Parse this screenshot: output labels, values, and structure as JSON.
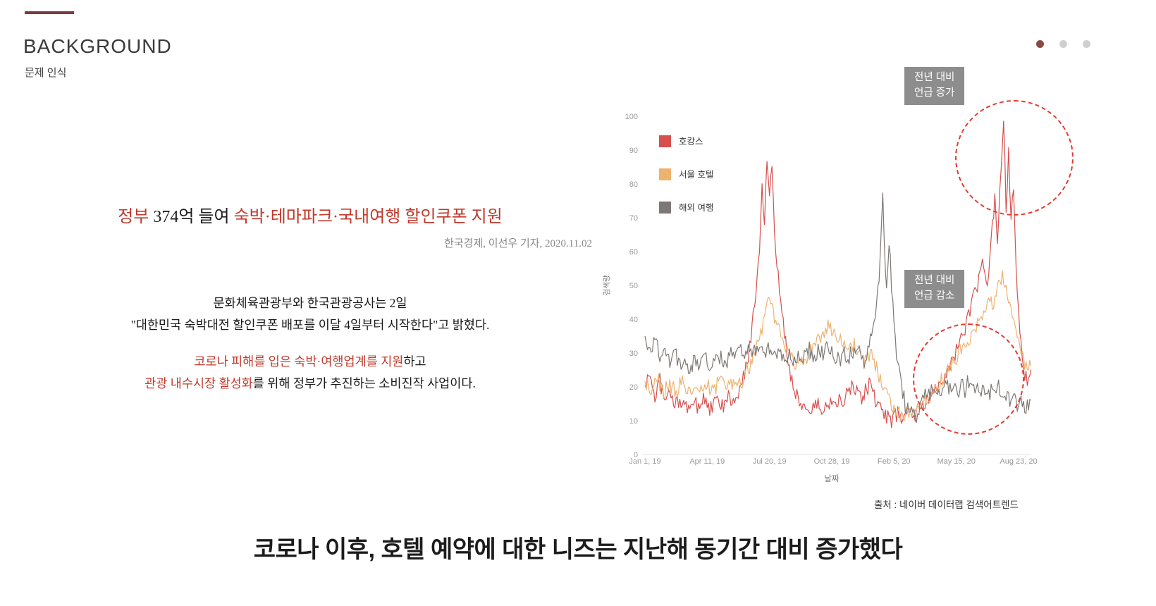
{
  "slide": {
    "title": "BACKGROUND",
    "subtitle": "문제 인식",
    "bottom_message": "코로나 이후, 호텔 예약에 대한 니즈는 지난해 동기간 대비 증가했다",
    "pagination": {
      "total": 3,
      "active": 0
    },
    "colors": {
      "accent": "#7d3b3b",
      "emphasis_red": "#c0392b",
      "active_dot": "#8a4a42",
      "inactive_dot": "#cfcfcf",
      "annotation_gray": "#8d8d8d",
      "highlight_dash_red": "#e23b32"
    }
  },
  "article": {
    "headline": [
      {
        "text": "정부",
        "em": true
      },
      {
        "text": " 374억 들여 ",
        "em": false
      },
      {
        "text": "숙박·테마파크·국내여행 할인쿠폰 지원",
        "em": true
      }
    ],
    "byline": "한국경제, 이선우 기자, 2020.11.02",
    "para1": [
      "문화체육관광부와 한국관광공사는 2일",
      "\"대한민국 숙박대전 할인쿠폰 배포를 이달 4일부터 시작한다\"고 밝혔다."
    ],
    "para2": [
      [
        {
          "text": "코로나 피해를 입은 숙박·여행업계를 지원",
          "em": true
        },
        {
          "text": "하고",
          "em": false
        }
      ],
      [
        {
          "text": "관광 내수시장 활성화",
          "em": true
        },
        {
          "text": "를 위해 정부가 추진하는 소비진작 사업이다.",
          "em": false
        }
      ]
    ]
  },
  "chart": {
    "source": "출처 : 네이버 데이터랩 검색어트렌드",
    "annotations": {
      "increase": [
        "전년 대비",
        "언급 증가"
      ],
      "decrease": [
        "전년 대비",
        "언급 감소"
      ]
    }
  },
  "chart_data": {
    "type": "line",
    "title": "",
    "xlabel": "날짜",
    "ylabel": "검색량",
    "ylim": [
      0,
      100
    ],
    "yticks": [
      0,
      10,
      20,
      30,
      40,
      50,
      60,
      70,
      80,
      90,
      100
    ],
    "x_tick_labels": [
      "Jan 1, 19",
      "Apr 11, 19",
      "Jul 20, 19",
      "Oct 28, 19",
      "Feb 5, 20",
      "May 15, 20",
      "Aug 23, 20"
    ],
    "x_tick_days": [
      0,
      100,
      200,
      300,
      400,
      500,
      600
    ],
    "x_domain": [
      0,
      620
    ],
    "grid": false,
    "legend_position": "top-left",
    "noise": 2.4,
    "series": [
      {
        "name": "호캉스",
        "color": "#d6504e",
        "anchors": [
          [
            0,
            20
          ],
          [
            8,
            24
          ],
          [
            16,
            17
          ],
          [
            24,
            22
          ],
          [
            32,
            15
          ],
          [
            40,
            19
          ],
          [
            48,
            14
          ],
          [
            56,
            17
          ],
          [
            64,
            13
          ],
          [
            75,
            16
          ],
          [
            85,
            14
          ],
          [
            95,
            17
          ],
          [
            105,
            13
          ],
          [
            115,
            16
          ],
          [
            125,
            14
          ],
          [
            135,
            17
          ],
          [
            145,
            15
          ],
          [
            155,
            20
          ],
          [
            165,
            28
          ],
          [
            172,
            38
          ],
          [
            178,
            48
          ],
          [
            184,
            62
          ],
          [
            188,
            80
          ],
          [
            192,
            68
          ],
          [
            196,
            87
          ],
          [
            200,
            78
          ],
          [
            204,
            83
          ],
          [
            208,
            65
          ],
          [
            214,
            52
          ],
          [
            220,
            42
          ],
          [
            228,
            30
          ],
          [
            236,
            22
          ],
          [
            245,
            17
          ],
          [
            255,
            14
          ],
          [
            265,
            13
          ],
          [
            275,
            15
          ],
          [
            285,
            13
          ],
          [
            295,
            15
          ],
          [
            305,
            17
          ],
          [
            315,
            15
          ],
          [
            325,
            18
          ],
          [
            335,
            20
          ],
          [
            345,
            16
          ],
          [
            355,
            19
          ],
          [
            362,
            21
          ],
          [
            370,
            16
          ],
          [
            378,
            13
          ],
          [
            386,
            12
          ],
          [
            395,
            10
          ],
          [
            405,
            12
          ],
          [
            415,
            11
          ],
          [
            425,
            13
          ],
          [
            435,
            12
          ],
          [
            445,
            14
          ],
          [
            455,
            16
          ],
          [
            465,
            19
          ],
          [
            475,
            22
          ],
          [
            485,
            25
          ],
          [
            495,
            28
          ],
          [
            505,
            33
          ],
          [
            515,
            38
          ],
          [
            525,
            45
          ],
          [
            535,
            50
          ],
          [
            543,
            58
          ],
          [
            550,
            48
          ],
          [
            556,
            65
          ],
          [
            562,
            75
          ],
          [
            567,
            62
          ],
          [
            571,
            82
          ],
          [
            576,
            100
          ],
          [
            580,
            72
          ],
          [
            584,
            90
          ],
          [
            588,
            70
          ],
          [
            592,
            78
          ],
          [
            596,
            55
          ],
          [
            600,
            42
          ],
          [
            605,
            30
          ],
          [
            610,
            24
          ],
          [
            615,
            20
          ],
          [
            620,
            23
          ]
        ]
      },
      {
        "name": "서울 호텔",
        "color": "#eeb26f",
        "anchors": [
          [
            0,
            22
          ],
          [
            10,
            19
          ],
          [
            20,
            23
          ],
          [
            30,
            18
          ],
          [
            40,
            21
          ],
          [
            50,
            18
          ],
          [
            60,
            22
          ],
          [
            70,
            19
          ],
          [
            80,
            21
          ],
          [
            90,
            18
          ],
          [
            100,
            20
          ],
          [
            110,
            19
          ],
          [
            120,
            22
          ],
          [
            130,
            19
          ],
          [
            140,
            21
          ],
          [
            150,
            20
          ],
          [
            160,
            23
          ],
          [
            170,
            27
          ],
          [
            178,
            31
          ],
          [
            186,
            36
          ],
          [
            194,
            43
          ],
          [
            200,
            47
          ],
          [
            206,
            42
          ],
          [
            212,
            38
          ],
          [
            220,
            34
          ],
          [
            228,
            30
          ],
          [
            236,
            28
          ],
          [
            245,
            26
          ],
          [
            255,
            28
          ],
          [
            265,
            30
          ],
          [
            275,
            33
          ],
          [
            285,
            35
          ],
          [
            295,
            38
          ],
          [
            305,
            36
          ],
          [
            315,
            33
          ],
          [
            325,
            31
          ],
          [
            335,
            33
          ],
          [
            345,
            29
          ],
          [
            355,
            27
          ],
          [
            362,
            30
          ],
          [
            370,
            26
          ],
          [
            378,
            22
          ],
          [
            386,
            18
          ],
          [
            394,
            15
          ],
          [
            402,
            13
          ],
          [
            412,
            11
          ],
          [
            422,
            12
          ],
          [
            432,
            14
          ],
          [
            442,
            13
          ],
          [
            452,
            16
          ],
          [
            462,
            18
          ],
          [
            472,
            21
          ],
          [
            482,
            23
          ],
          [
            492,
            26
          ],
          [
            502,
            29
          ],
          [
            512,
            32
          ],
          [
            522,
            35
          ],
          [
            532,
            38
          ],
          [
            542,
            42
          ],
          [
            552,
            46
          ],
          [
            560,
            44
          ],
          [
            568,
            50
          ],
          [
            575,
            53
          ],
          [
            582,
            47
          ],
          [
            589,
            42
          ],
          [
            596,
            36
          ],
          [
            603,
            30
          ],
          [
            610,
            26
          ],
          [
            616,
            24
          ],
          [
            620,
            28
          ]
        ]
      },
      {
        "name": "해외 여행",
        "color": "#7e7874",
        "anchors": [
          [
            0,
            36
          ],
          [
            8,
            30
          ],
          [
            16,
            35
          ],
          [
            24,
            28
          ],
          [
            32,
            33
          ],
          [
            40,
            27
          ],
          [
            48,
            31
          ],
          [
            56,
            26
          ],
          [
            64,
            29
          ],
          [
            72,
            25
          ],
          [
            80,
            28
          ],
          [
            88,
            26
          ],
          [
            96,
            29
          ],
          [
            104,
            25
          ],
          [
            112,
            27
          ],
          [
            120,
            29
          ],
          [
            128,
            26
          ],
          [
            136,
            30
          ],
          [
            144,
            28
          ],
          [
            152,
            31
          ],
          [
            160,
            29
          ],
          [
            168,
            32
          ],
          [
            176,
            30
          ],
          [
            184,
            33
          ],
          [
            192,
            30
          ],
          [
            200,
            32
          ],
          [
            208,
            29
          ],
          [
            216,
            31
          ],
          [
            224,
            28
          ],
          [
            232,
            30
          ],
          [
            240,
            28
          ],
          [
            248,
            30
          ],
          [
            256,
            29
          ],
          [
            264,
            31
          ],
          [
            272,
            29
          ],
          [
            280,
            31
          ],
          [
            288,
            30
          ],
          [
            296,
            32
          ],
          [
            304,
            29
          ],
          [
            312,
            28
          ],
          [
            320,
            30
          ],
          [
            328,
            29
          ],
          [
            336,
            31
          ],
          [
            344,
            30
          ],
          [
            352,
            27
          ],
          [
            358,
            32
          ],
          [
            364,
            36
          ],
          [
            370,
            42
          ],
          [
            375,
            50
          ],
          [
            379,
            62
          ],
          [
            382,
            78
          ],
          [
            385,
            60
          ],
          [
            388,
            48
          ],
          [
            392,
            64
          ],
          [
            396,
            50
          ],
          [
            400,
            38
          ],
          [
            404,
            30
          ],
          [
            408,
            25
          ],
          [
            413,
            19
          ],
          [
            418,
            15
          ],
          [
            424,
            12
          ],
          [
            430,
            14
          ],
          [
            436,
            11
          ],
          [
            442,
            15
          ],
          [
            448,
            18
          ],
          [
            454,
            16
          ],
          [
            460,
            20
          ],
          [
            466,
            17
          ],
          [
            472,
            20
          ],
          [
            478,
            18
          ],
          [
            484,
            21
          ],
          [
            490,
            19
          ],
          [
            496,
            22
          ],
          [
            502,
            18
          ],
          [
            508,
            21
          ],
          [
            514,
            19
          ],
          [
            520,
            22
          ],
          [
            526,
            19
          ],
          [
            532,
            21
          ],
          [
            538,
            18
          ],
          [
            544,
            20
          ],
          [
            550,
            17
          ],
          [
            556,
            19
          ],
          [
            562,
            17
          ],
          [
            568,
            20
          ],
          [
            574,
            16
          ],
          [
            580,
            18
          ],
          [
            586,
            16
          ],
          [
            592,
            17
          ],
          [
            598,
            14
          ],
          [
            604,
            16
          ],
          [
            610,
            13
          ],
          [
            616,
            15
          ],
          [
            620,
            14
          ]
        ]
      }
    ]
  }
}
